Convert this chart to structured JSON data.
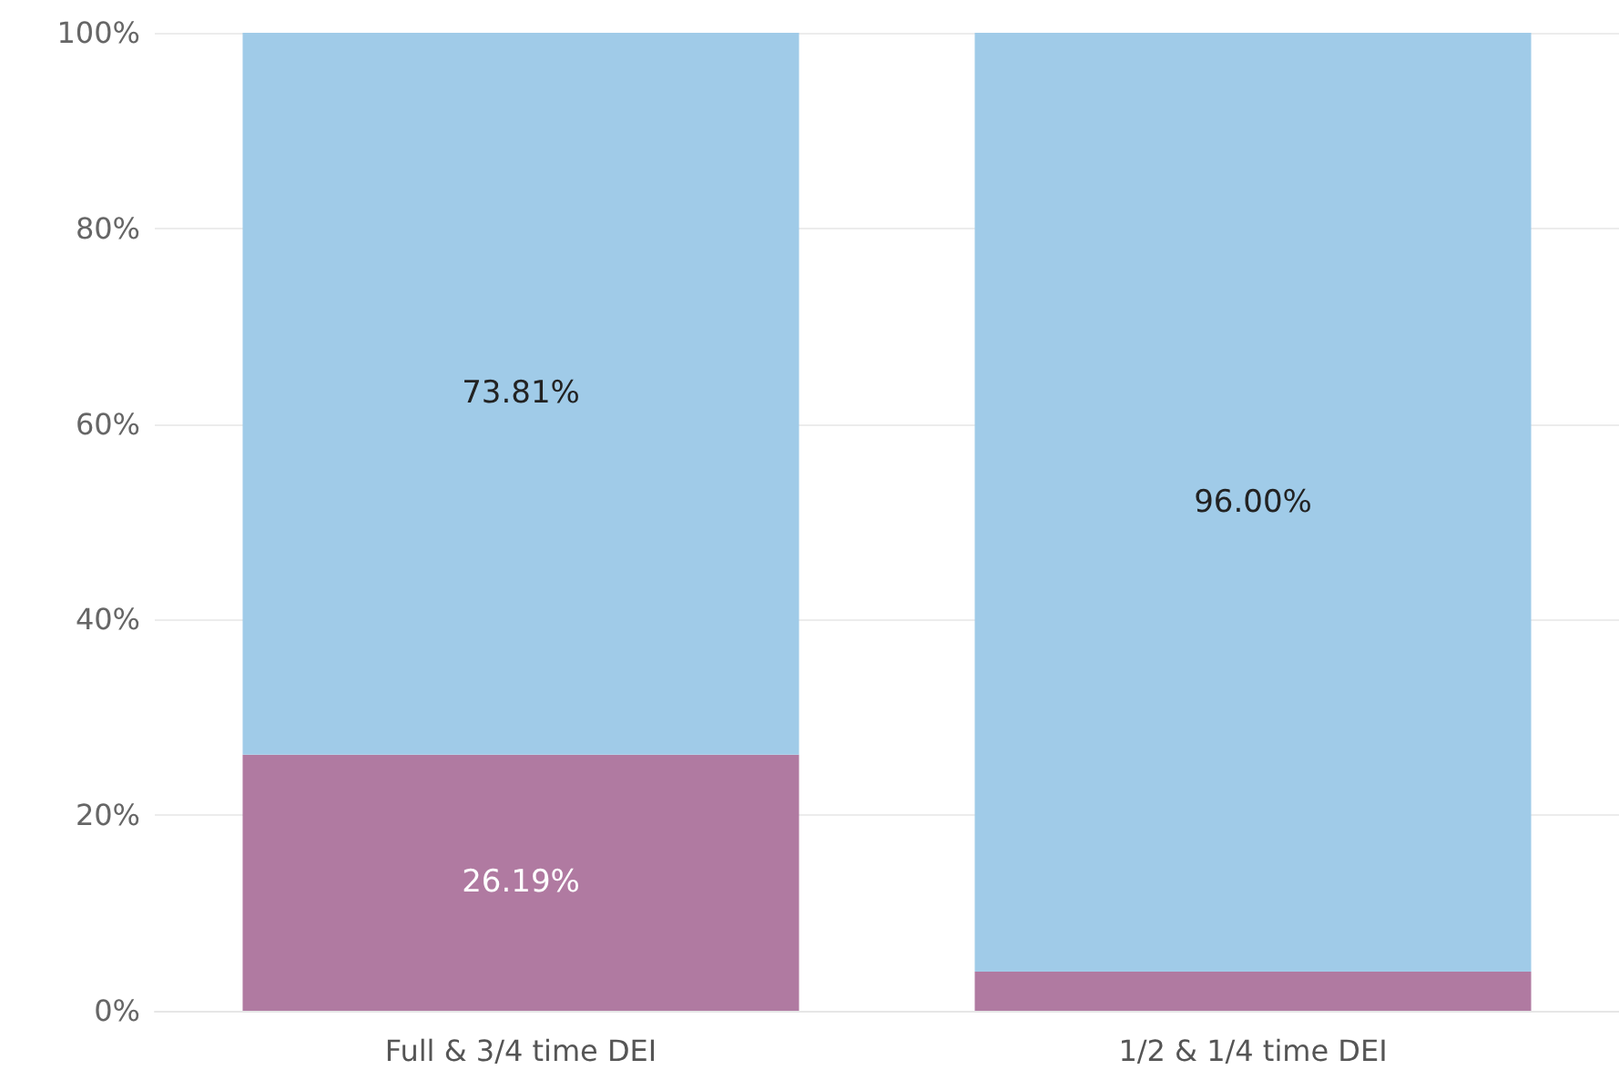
{
  "chart_data": {
    "type": "bar",
    "stacked": true,
    "categories": [
      "Full & 3/4 time DEI",
      "1/2 & 1/4 time DEI"
    ],
    "series": [
      {
        "color": "#b07aa1",
        "values": [
          26.19,
          4.0
        ],
        "value_labels": [
          "26.19%",
          null
        ]
      },
      {
        "color": "#a0cbe8",
        "values": [
          73.81,
          96.0
        ],
        "value_labels": [
          "73.81%",
          "96.00%"
        ]
      }
    ],
    "ylim": [
      0,
      100
    ],
    "yticks": [
      {
        "value": 0,
        "label": "0%"
      },
      {
        "value": 20,
        "label": "20%"
      },
      {
        "value": 40,
        "label": "40%"
      },
      {
        "value": 60,
        "label": "60%"
      },
      {
        "value": 80,
        "label": "80%"
      },
      {
        "value": 100,
        "label": "100%"
      }
    ],
    "grid": "y"
  }
}
